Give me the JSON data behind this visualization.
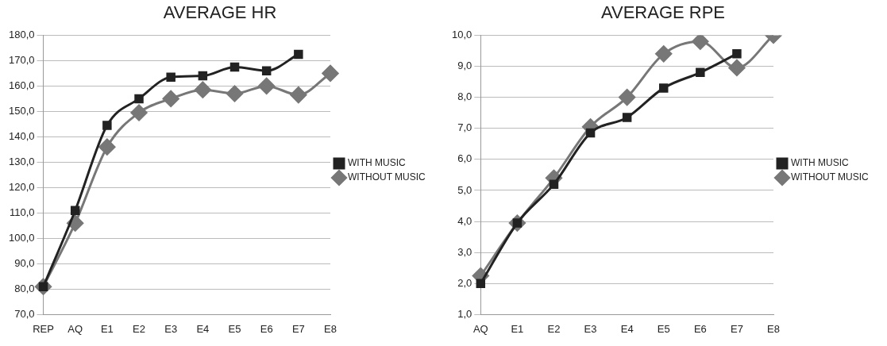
{
  "chart_data": [
    {
      "type": "line",
      "title": "AVERAGE HR",
      "categories": [
        "REP",
        "AQ",
        "E1",
        "E2",
        "E3",
        "E4",
        "E5",
        "E6",
        "E7",
        "E8"
      ],
      "ylim": [
        70,
        180
      ],
      "yticks": [
        {
          "value": 70,
          "label": "70,0"
        },
        {
          "value": 80,
          "label": "80,0"
        },
        {
          "value": 90,
          "label": "90,0"
        },
        {
          "value": 100,
          "label": "100,0"
        },
        {
          "value": 110,
          "label": "110,0"
        },
        {
          "value": 120,
          "label": "120,0"
        },
        {
          "value": 130,
          "label": "130,0"
        },
        {
          "value": 140,
          "label": "140,0"
        },
        {
          "value": 150,
          "label": "150,0"
        },
        {
          "value": 160,
          "label": "160,0"
        },
        {
          "value": 170,
          "label": "170,0"
        },
        {
          "value": 180,
          "label": "180,0"
        }
      ],
      "grid": "y",
      "legend": "right",
      "series": [
        {
          "name": "WITH MUSIC",
          "color": "#222222",
          "marker": "square",
          "values": [
            81,
            111,
            144.5,
            155,
            163.5,
            164,
            167.5,
            166,
            172.5,
            null
          ]
        },
        {
          "name": "WITHOUT MUSIC",
          "color": "#777777",
          "marker": "diamond",
          "values": [
            81,
            106,
            136,
            149.5,
            155,
            158.5,
            157,
            160,
            156.5,
            165
          ]
        }
      ]
    },
    {
      "type": "line",
      "title": "AVERAGE RPE",
      "categories": [
        "AQ",
        "E1",
        "E2",
        "E3",
        "E4",
        "E5",
        "E6",
        "E7",
        "E8"
      ],
      "ylim": [
        1,
        10
      ],
      "yticks": [
        {
          "value": 1,
          "label": "1,0"
        },
        {
          "value": 2,
          "label": "2,0"
        },
        {
          "value": 3,
          "label": "3,0"
        },
        {
          "value": 4,
          "label": "4,0"
        },
        {
          "value": 5,
          "label": "5,0"
        },
        {
          "value": 6,
          "label": "6,0"
        },
        {
          "value": 7,
          "label": "7,0"
        },
        {
          "value": 8,
          "label": "8,0"
        },
        {
          "value": 9,
          "label": "9,0"
        },
        {
          "value": 10,
          "label": "10,0"
        }
      ],
      "grid": "y",
      "legend": "right",
      "series": [
        {
          "name": "WITH MUSIC",
          "color": "#222222",
          "marker": "square",
          "values": [
            2.0,
            3.95,
            5.2,
            6.85,
            7.35,
            8.3,
            8.8,
            9.4,
            null
          ]
        },
        {
          "name": "WITHOUT MUSIC",
          "color": "#777777",
          "marker": "diamond",
          "values": [
            2.25,
            3.95,
            5.4,
            7.05,
            8.0,
            9.4,
            9.8,
            8.95,
            10.0
          ]
        }
      ]
    }
  ]
}
